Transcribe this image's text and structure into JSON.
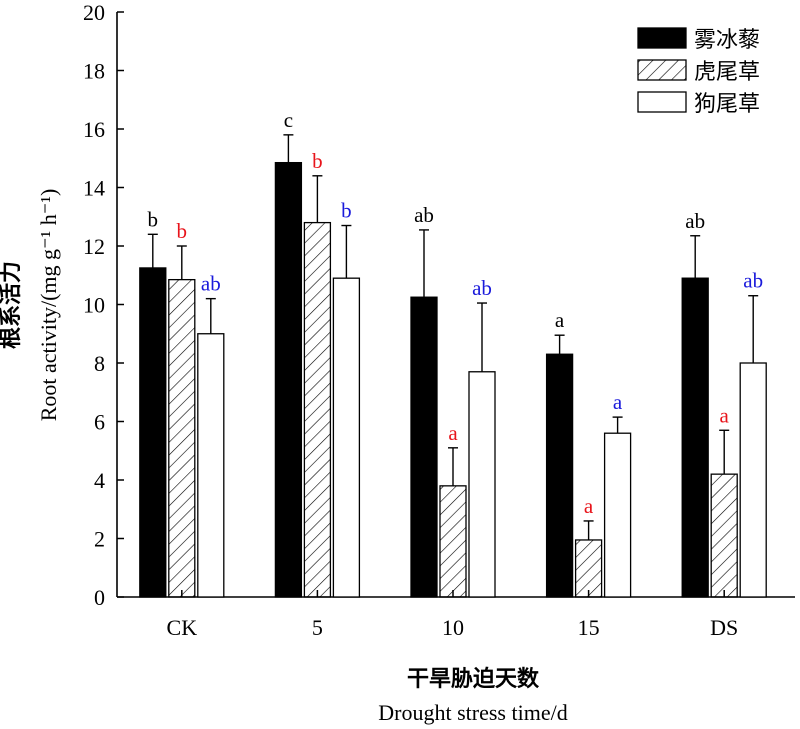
{
  "chart_data": {
    "type": "bar",
    "categories": [
      "CK",
      "5",
      "10",
      "15",
      "DS"
    ],
    "ylabel_cn": "根系活力",
    "ylabel_en": "Root activity/(mg g⁻¹ h⁻¹)",
    "xlabel_cn": "干旱胁迫天数",
    "xlabel_en": "Drought stress time/d",
    "ylim": [
      0,
      20
    ],
    "yticks": [
      0,
      2,
      4,
      6,
      8,
      10,
      12,
      14,
      16,
      18,
      20
    ],
    "legend_position": "top-right",
    "series": [
      {
        "name": "雾冰藜",
        "fill": "black",
        "letter_color": "#000000",
        "values": [
          11.25,
          14.85,
          10.25,
          8.3,
          10.9
        ],
        "errors": [
          1.15,
          0.95,
          2.3,
          0.65,
          1.45
        ],
        "letters": [
          "b",
          "c",
          "ab",
          "a",
          "ab"
        ]
      },
      {
        "name": "虎尾草",
        "fill": "hatch",
        "letter_color": "#e8141b",
        "values": [
          10.85,
          12.8,
          3.8,
          1.95,
          4.2
        ],
        "errors": [
          1.15,
          1.6,
          1.3,
          0.65,
          1.5
        ],
        "letters": [
          "b",
          "b",
          "a",
          "a",
          "a"
        ]
      },
      {
        "name": "狗尾草",
        "fill": "white",
        "letter_color": "#1a1adb",
        "values": [
          9.0,
          10.9,
          7.7,
          5.6,
          8.0
        ],
        "errors": [
          1.2,
          1.8,
          2.35,
          0.55,
          2.3
        ],
        "letters": [
          "ab",
          "b",
          "ab",
          "a",
          "ab"
        ]
      }
    ]
  }
}
